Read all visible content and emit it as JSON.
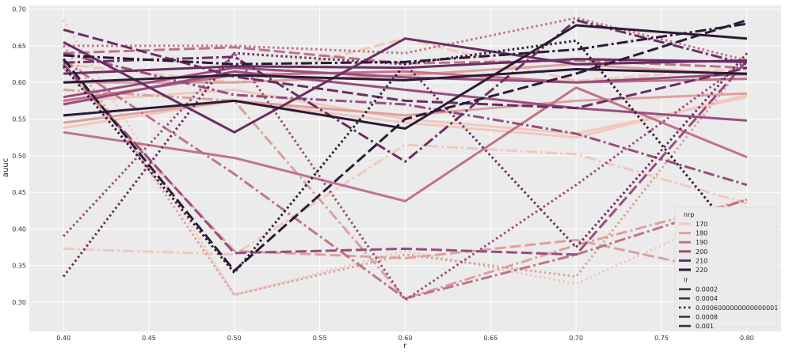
{
  "chart_data": {
    "type": "line",
    "xlabel": "r",
    "ylabel": "auuc",
    "x": [
      0.4,
      0.5,
      0.6,
      0.7,
      0.8
    ],
    "xlim": [
      0.38,
      0.82
    ],
    "ylim": [
      0.26,
      0.705
    ],
    "xticks": [
      "0.40",
      "0.45",
      "0.50",
      "0.55",
      "0.60",
      "0.65",
      "0.70",
      "0.75",
      "0.80"
    ],
    "yticks": [
      "0.30",
      "0.35",
      "0.40",
      "0.45",
      "0.50",
      "0.55",
      "0.60",
      "0.65",
      "0.70"
    ],
    "grid": true,
    "legend": {
      "placement": "lower-right",
      "hue_title": "nrp",
      "hue_entries": [
        "170",
        "180",
        "190",
        "200",
        "210",
        "220"
      ],
      "style_title": "lr",
      "style_entries": [
        "0.0002",
        "0.0004",
        "0.0006000000000000001",
        "0.0008",
        "0.001"
      ]
    },
    "hue_colors": {
      "170": "#f0c9bd",
      "180": "#dea0a0",
      "190": "#c1728a",
      "200": "#994d7d",
      "210": "#6a2e62",
      "220": "#2c1a35"
    },
    "style_dashes": {
      "0.0002": "",
      "0.0004": "14 5",
      "0.0006000000000000001": "2.5 3.5",
      "0.0008": "14 4 3 4",
      "0.001": ""
    },
    "series": [
      {
        "nrp": "170",
        "lr": "0.0002",
        "values": [
          0.538,
          0.575,
          0.545,
          0.525,
          0.583
        ]
      },
      {
        "nrp": "170",
        "lr": "0.0004",
        "values": [
          0.625,
          0.6,
          0.66,
          0.602,
          0.62
        ]
      },
      {
        "nrp": "170",
        "lr": "0.0006000000000000001",
        "values": [
          0.685,
          0.31,
          0.37,
          0.325,
          0.43
        ]
      },
      {
        "nrp": "170",
        "lr": "0.0008",
        "values": [
          0.373,
          0.365,
          0.515,
          0.502,
          0.435
        ]
      },
      {
        "nrp": "170",
        "lr": "0.001",
        "values": [
          0.573,
          0.59,
          0.55,
          0.53,
          0.58
        ]
      },
      {
        "nrp": "180",
        "lr": "0.0002",
        "values": [
          0.545,
          0.575,
          0.555,
          0.575,
          0.585
        ]
      },
      {
        "nrp": "180",
        "lr": "0.0004",
        "values": [
          0.62,
          0.37,
          0.36,
          0.385,
          0.335
        ]
      },
      {
        "nrp": "180",
        "lr": "0.0006000000000000001",
        "values": [
          0.65,
          0.31,
          0.365,
          0.335,
          0.63
        ]
      },
      {
        "nrp": "180",
        "lr": "0.0008",
        "values": [
          0.59,
          0.575,
          0.305,
          0.378,
          0.44
        ]
      },
      {
        "nrp": "180",
        "lr": "0.001",
        "values": [
          0.6,
          0.6,
          0.61,
          0.625,
          0.61
        ]
      },
      {
        "nrp": "190",
        "lr": "0.0002",
        "values": [
          0.532,
          0.497,
          0.438,
          0.593,
          0.498
        ]
      },
      {
        "nrp": "190",
        "lr": "0.0004",
        "values": [
          0.64,
          0.648,
          0.626,
          0.63,
          0.62
        ]
      },
      {
        "nrp": "190",
        "lr": "0.0006000000000000001",
        "values": [
          0.65,
          0.65,
          0.64,
          0.688,
          0.63
        ]
      },
      {
        "nrp": "190",
        "lr": "0.0008",
        "values": [
          0.63,
          0.475,
          0.305,
          0.365,
          0.44
        ]
      },
      {
        "nrp": "190",
        "lr": "0.001",
        "values": [
          0.575,
          0.61,
          0.615,
          0.6,
          0.605
        ]
      },
      {
        "nrp": "200",
        "lr": "0.0002",
        "values": [
          0.57,
          0.615,
          0.59,
          0.565,
          0.548
        ]
      },
      {
        "nrp": "200",
        "lr": "0.0004",
        "values": [
          0.625,
          0.367,
          0.373,
          0.365,
          0.63
        ]
      },
      {
        "nrp": "200",
        "lr": "0.0006000000000000001",
        "values": [
          0.39,
          0.64,
          0.303,
          0.46,
          0.63
        ]
      },
      {
        "nrp": "200",
        "lr": "0.0008",
        "values": [
          0.64,
          0.583,
          0.57,
          0.53,
          0.46
        ]
      },
      {
        "nrp": "200",
        "lr": "0.001",
        "values": [
          0.58,
          0.62,
          0.607,
          0.6,
          0.612
        ]
      },
      {
        "nrp": "210",
        "lr": "0.0002",
        "values": [
          0.655,
          0.532,
          0.66,
          0.625,
          0.63
        ]
      },
      {
        "nrp": "210",
        "lr": "0.0004",
        "values": [
          0.672,
          0.608,
          0.575,
          0.565,
          0.62
        ]
      },
      {
        "nrp": "210",
        "lr": "0.0006000000000000001",
        "values": [
          0.335,
          0.64,
          0.625,
          0.375,
          0.64
        ]
      },
      {
        "nrp": "210",
        "lr": "0.0008",
        "values": [
          0.627,
          0.635,
          0.492,
          0.685,
          0.625
        ]
      },
      {
        "nrp": "210",
        "lr": "0.001",
        "values": [
          0.612,
          0.622,
          0.62,
          0.632,
          0.628
        ]
      },
      {
        "nrp": "220",
        "lr": "0.0002",
        "values": [
          0.555,
          0.575,
          0.537,
          0.678,
          0.66
        ]
      },
      {
        "nrp": "220",
        "lr": "0.0004",
        "values": [
          0.632,
          0.343,
          0.55,
          0.612,
          0.685
        ]
      },
      {
        "nrp": "220",
        "lr": "0.0006000000000000001",
        "values": [
          0.622,
          0.34,
          0.625,
          0.657,
          0.373
        ]
      },
      {
        "nrp": "220",
        "lr": "0.0008",
        "values": [
          0.637,
          0.625,
          0.628,
          0.645,
          0.68
        ]
      },
      {
        "nrp": "220",
        "lr": "0.001",
        "values": [
          0.6,
          0.61,
          0.603,
          0.618,
          0.612
        ]
      }
    ]
  }
}
